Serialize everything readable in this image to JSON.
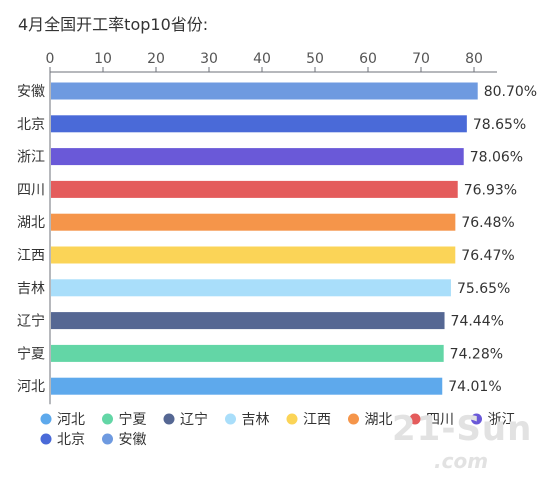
{
  "chart_data": {
    "type": "bar",
    "orientation": "horizontal",
    "title": "4月全国开工率top10省份:",
    "xlim": [
      0,
      80
    ],
    "xticks": [
      "0",
      "10",
      "20",
      "30",
      "40",
      "50",
      "60",
      "70",
      "80"
    ],
    "categories": [
      "安徽",
      "北京",
      "浙江",
      "四川",
      "湖北",
      "江西",
      "吉林",
      "辽宁",
      "宁夏",
      "河北"
    ],
    "values": [
      80.7,
      78.65,
      78.06,
      76.93,
      76.48,
      76.47,
      75.65,
      74.44,
      74.28,
      74.01
    ],
    "value_labels": [
      "80.70%",
      "78.65%",
      "78.06%",
      "76.93%",
      "76.48%",
      "76.47%",
      "75.65%",
      "74.44%",
      "74.28%",
      "74.01%"
    ],
    "colors": [
      "#6e9ae0",
      "#4a6ad8",
      "#6a59d8",
      "#e45c5c",
      "#f5954a",
      "#fbd457",
      "#a9defa",
      "#556793",
      "#63d6a6",
      "#5ea9ec"
    ],
    "legend": {
      "position": "bottom",
      "rows": [
        [
          {
            "label": "河北",
            "color": "#5ea9ec"
          },
          {
            "label": "宁夏",
            "color": "#63d6a6"
          },
          {
            "label": "辽宁",
            "color": "#556793"
          },
          {
            "label": "吉林",
            "color": "#a9defa"
          },
          {
            "label": "江西",
            "color": "#fbd457"
          },
          {
            "label": "湖北",
            "color": "#f5954a"
          },
          {
            "label": "四川",
            "color": "#e45c5c"
          },
          {
            "label": "浙江",
            "color": "#6a59d8"
          }
        ],
        [
          {
            "label": "北京",
            "color": "#4a6ad8"
          },
          {
            "label": "安徽",
            "color": "#6e9ae0"
          }
        ]
      ]
    },
    "grid": false
  },
  "watermark": {
    "main": "21-Sun",
    "sub": ".com"
  }
}
